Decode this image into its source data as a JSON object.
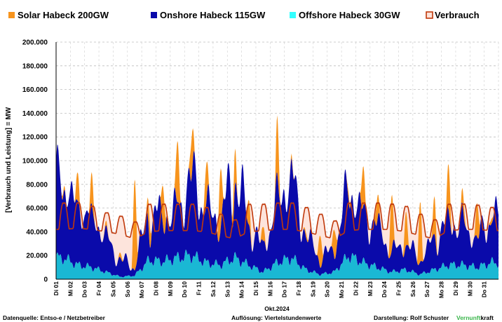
{
  "chart_data": {
    "type": "area",
    "title": "",
    "xlabel": "Okt.2024",
    "ylabel": "[Verbrauch und Leistung] = MW",
    "ylim": [
      0,
      200000
    ],
    "yticks": [
      "0",
      "20.000",
      "40.000",
      "60.000",
      "80.000",
      "100.000",
      "120.000",
      "140.000",
      "160.000",
      "180.000",
      "200.000"
    ],
    "grid": true,
    "legend_position": "top",
    "categories": [
      "Di 01",
      "Mi 02",
      "Do 03",
      "Fr 04",
      "Sa 05",
      "So 06",
      "Mo 07",
      "Di 08",
      "Mi 09",
      "Do 10",
      "Fr 11",
      "Sa 12",
      "So 13",
      "Mo 14",
      "Di 15",
      "Mi 16",
      "Do 17",
      "Fr 18",
      "Sa 19",
      "So 20",
      "Mo 21",
      "Di 22",
      "Mi 23",
      "Do 24",
      "Fr 25",
      "Sa 26",
      "So 27",
      "Mo 28",
      "Di 29",
      "Mi 30",
      "Do 31"
    ],
    "series": [
      {
        "name": "Solar Habeck 200GW",
        "color": "#f7941d",
        "daily_peak": [
          92000,
          80000,
          78000,
          30000,
          5000,
          85000,
          85000,
          85000,
          108000,
          130000,
          97000,
          100000,
          148000,
          72000,
          38000,
          120000,
          88000,
          35000,
          45000,
          50000,
          88000,
          88000,
          68000,
          68000,
          60000,
          65000,
          68000,
          90000,
          60000,
          60000,
          55000
        ]
      },
      {
        "name": "Onshore Habeck 115GW",
        "color": "#0a0aaa",
        "daily_max": [
          92000,
          60000,
          55000,
          40000,
          25000,
          12000,
          68000,
          55000,
          60000,
          100000,
          68000,
          52000,
          120000,
          55000,
          30000,
          75000,
          95000,
          45000,
          22000,
          30000,
          86000,
          58000,
          52000,
          25000,
          35000,
          18000,
          40000,
          55000,
          50000,
          35000,
          58000
        ],
        "daily_min": [
          38000,
          35000,
          30000,
          18000,
          3000,
          2000,
          12000,
          18000,
          22000,
          30000,
          25000,
          18000,
          22000,
          15000,
          8000,
          28000,
          40000,
          12000,
          5000,
          8000,
          30000,
          22000,
          18000,
          8000,
          10000,
          5000,
          12000,
          18000,
          18000,
          12000,
          20000
        ]
      },
      {
        "name": "Offshore Habeck 30GW",
        "color": "#1ab8d4",
        "daily_mean": [
          18000,
          12000,
          10000,
          6000,
          2000,
          3000,
          16000,
          15000,
          18000,
          20000,
          14000,
          12000,
          18000,
          12000,
          6000,
          14000,
          18000,
          8000,
          4000,
          6000,
          20000,
          14000,
          10000,
          6000,
          8000,
          4000,
          8000,
          12000,
          12000,
          10000,
          14000
        ]
      },
      {
        "name": "Verbrauch",
        "color": "#c0390b",
        "daily_max": [
          67000,
          67000,
          64000,
          58000,
          55000,
          50000,
          66000,
          66000,
          66000,
          66000,
          63000,
          57000,
          52000,
          66000,
          66000,
          67000,
          67000,
          63000,
          57000,
          51000,
          67000,
          67000,
          67000,
          66000,
          64000,
          57000,
          52000,
          66000,
          66000,
          65000,
          63000
        ],
        "daily_min": [
          42000,
          43000,
          42000,
          40000,
          38000,
          34000,
          40000,
          41000,
          41000,
          41000,
          40000,
          37000,
          34000,
          40000,
          41000,
          42000,
          42000,
          40000,
          37000,
          34000,
          41000,
          42000,
          42000,
          42000,
          40000,
          37000,
          34000,
          41000,
          42000,
          42000,
          41000
        ]
      }
    ]
  },
  "footer": {
    "source": "Datenquelle: Entso-e  / Netzbetreiber",
    "resolution": "Auflösung: Viertelstundenwerte",
    "author": "Darstellung:  Rolf Schuster",
    "brand_green": "Vernunft",
    "brand_rest": "kraft",
    "brand_color": "#39b54a"
  }
}
